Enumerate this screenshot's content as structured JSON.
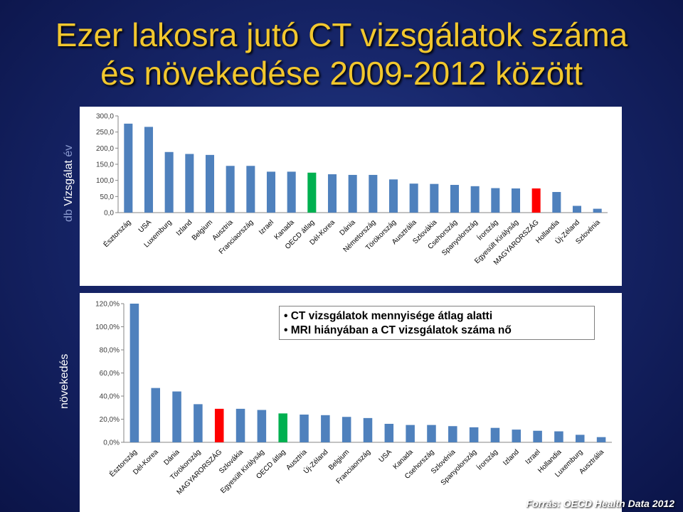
{
  "title_line1": "Ezer lakosra jutó CT vizsgálatok száma",
  "title_line2": "és  növekedése 2009-2012 között",
  "ylabel1_prefix": "db",
  "ylabel1_main": "Vizsgálat",
  "ylabel1_suffix": "év",
  "ylabel2": "növekedés",
  "note_lines": [
    "CT vizsgálatok mennyisége átlag alatti",
    "MRI hiányában a CT vizsgálatok száma nő"
  ],
  "source": "Forrás: OECD Health Data 2012",
  "colors": {
    "bar": "#4f81bd",
    "hungary": "#ff0000",
    "oecd": "#00b050",
    "title": "#f2c72e"
  },
  "chart_data": [
    {
      "type": "bar",
      "categories": [
        "Észtország",
        "USA",
        "Luxemburg",
        "Izland",
        "Belgium",
        "Ausztria",
        "Franciaország",
        "Izrael",
        "Kanada",
        "OECD átlag",
        "Dél-Korea",
        "Dánia",
        "Németország",
        "Törökország",
        "Ausztrália",
        "Szlovákia",
        "Csehország",
        "Spanyolország",
        "Írország",
        "Egyesült Királyság",
        "MAGYARORSZÁG",
        "Hollandia",
        "Új-Zéland",
        "Szlovénia"
      ],
      "values": [
        276,
        266,
        188,
        182,
        179,
        145,
        145,
        127,
        127,
        124,
        119,
        117,
        117,
        103,
        90,
        89,
        86,
        82,
        76,
        75,
        75,
        64,
        21,
        12
      ],
      "highlight": {
        "MAGYARORSZÁG": "hungary",
        "OECD átlag": "oecd"
      },
      "ylim": [
        0,
        300
      ],
      "yticks": [
        "0,0",
        "50,0",
        "100,0",
        "150,0",
        "200,0",
        "250,0",
        "300,0"
      ],
      "ylabel": "db Vizsgálat év"
    },
    {
      "type": "bar",
      "categories": [
        "Észtország",
        "Dél-Korea",
        "Dánia",
        "Törökország",
        "MAGYARORSZÁG",
        "Szlovákia",
        "Egyesült Királyság",
        "OECD átlag",
        "Ausztria",
        "Új-Zéland",
        "Belgium",
        "Franciaország",
        "USA",
        "Kanada",
        "Csehország",
        "Szlovénia",
        "Spanyolország",
        "Írország",
        "Izland",
        "Izrael",
        "Hollandia",
        "Luxemburg",
        "Ausztrália"
      ],
      "values": [
        120,
        47,
        44,
        33,
        29,
        29,
        28,
        25,
        24,
        23.5,
        22,
        21,
        16,
        15,
        15,
        14,
        13,
        12.5,
        11,
        10,
        9.5,
        6.5,
        4.5
      ],
      "highlight": {
        "MAGYARORSZÁG": "hungary",
        "OECD átlag": "oecd"
      },
      "ylim": [
        0,
        120
      ],
      "yticks": [
        "0,0%",
        "20,0%",
        "40,0%",
        "60,0%",
        "80,0%",
        "100,0%",
        "120,0%"
      ],
      "ylabel": "növekedés"
    }
  ]
}
